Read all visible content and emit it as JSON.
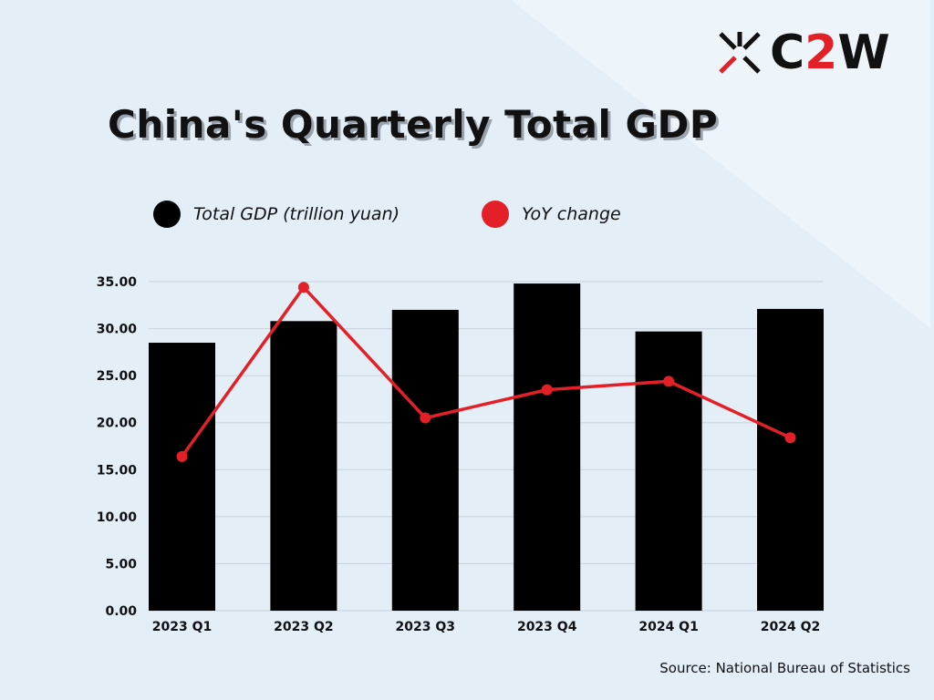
{
  "logo": {
    "prefix": "C",
    "accent": "2",
    "suffix": "W"
  },
  "chart_data": {
    "type": "bar",
    "title": "China's Quarterly Total GDP",
    "categories": [
      "2023 Q1",
      "2023 Q2",
      "2023 Q3",
      "2023 Q4",
      "2024 Q1",
      "2024 Q2"
    ],
    "series": [
      {
        "name": "Total GDP (trillion  yuan)",
        "type": "bar",
        "color": "#000000",
        "values": [
          28.5,
          30.8,
          32.0,
          34.8,
          29.7,
          32.1
        ]
      },
      {
        "name": "YoY change",
        "type": "line",
        "color": "#e32027",
        "values": [
          16.4,
          34.4,
          20.5,
          23.5,
          24.4,
          18.4
        ]
      }
    ],
    "yticks": [
      "0.00",
      "5.00",
      "10.00",
      "15.00",
      "20.00",
      "25.00",
      "30.00",
      "35.00"
    ],
    "ylim": [
      0,
      35
    ],
    "grid": true,
    "legend": "top"
  },
  "source": "Source: National Bureau of Statistics"
}
